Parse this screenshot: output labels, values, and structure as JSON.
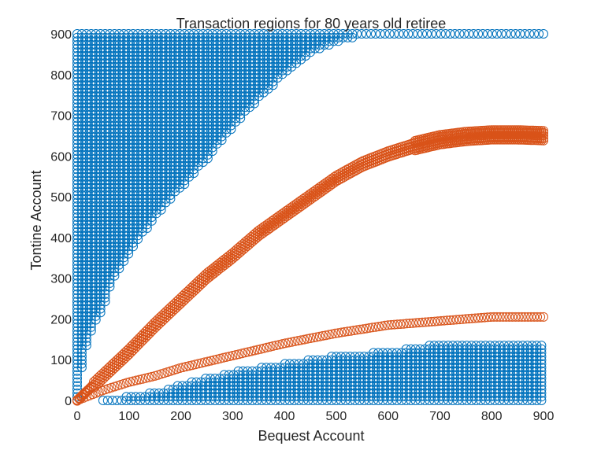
{
  "chart_data": {
    "type": "scatter",
    "title": "Transaction regions for 80 years old retiree",
    "xlabel": "Bequest Account",
    "ylabel": "Tontine Account",
    "xlim": [
      0,
      900
    ],
    "ylim": [
      0,
      900
    ],
    "xticks": [
      0,
      100,
      200,
      300,
      400,
      500,
      600,
      700,
      800,
      900
    ],
    "yticks": [
      0,
      100,
      200,
      300,
      400,
      500,
      600,
      700,
      800,
      900
    ],
    "grid": false,
    "legend": "none",
    "marker": "open circle",
    "colors": {
      "blue": "#0072BD",
      "orange": "#D95319"
    },
    "series": [
      {
        "color": "blue",
        "region": "upper-left fill",
        "lower_boundary": {
          "x": [
            0,
            10,
            25,
            50,
            75,
            100,
            150,
            200,
            250,
            300,
            350,
            400,
            450,
            500,
            560,
            900
          ],
          "y": [
            0,
            90,
            160,
            230,
            310,
            360,
            450,
            520,
            590,
            670,
            740,
            800,
            850,
            880,
            900,
            900
          ]
        }
      },
      {
        "color": "orange",
        "region": "upper curve band",
        "center": {
          "x": [
            0,
            50,
            100,
            150,
            200,
            250,
            300,
            350,
            400,
            450,
            500,
            550,
            600,
            650,
            700,
            750,
            800,
            850,
            900
          ],
          "y": [
            0,
            60,
            120,
            185,
            245,
            305,
            355,
            410,
            455,
            500,
            545,
            580,
            605,
            625,
            640,
            648,
            652,
            652,
            650
          ]
        },
        "halfwidth": 12
      },
      {
        "color": "orange",
        "region": "lower curve",
        "center": {
          "x": [
            0,
            50,
            100,
            150,
            200,
            300,
            400,
            500,
            600,
            700,
            800,
            900
          ],
          "y": [
            0,
            25,
            45,
            60,
            80,
            110,
            140,
            165,
            185,
            195,
            205,
            205
          ]
        }
      },
      {
        "color": "blue",
        "region": "bottom fill",
        "upper_boundary": {
          "x": [
            50,
            100,
            150,
            200,
            300,
            400,
            500,
            600,
            650,
            700,
            800,
            900
          ],
          "y": [
            0,
            10,
            20,
            40,
            70,
            90,
            110,
            120,
            130,
            140,
            140,
            140
          ]
        }
      }
    ]
  }
}
